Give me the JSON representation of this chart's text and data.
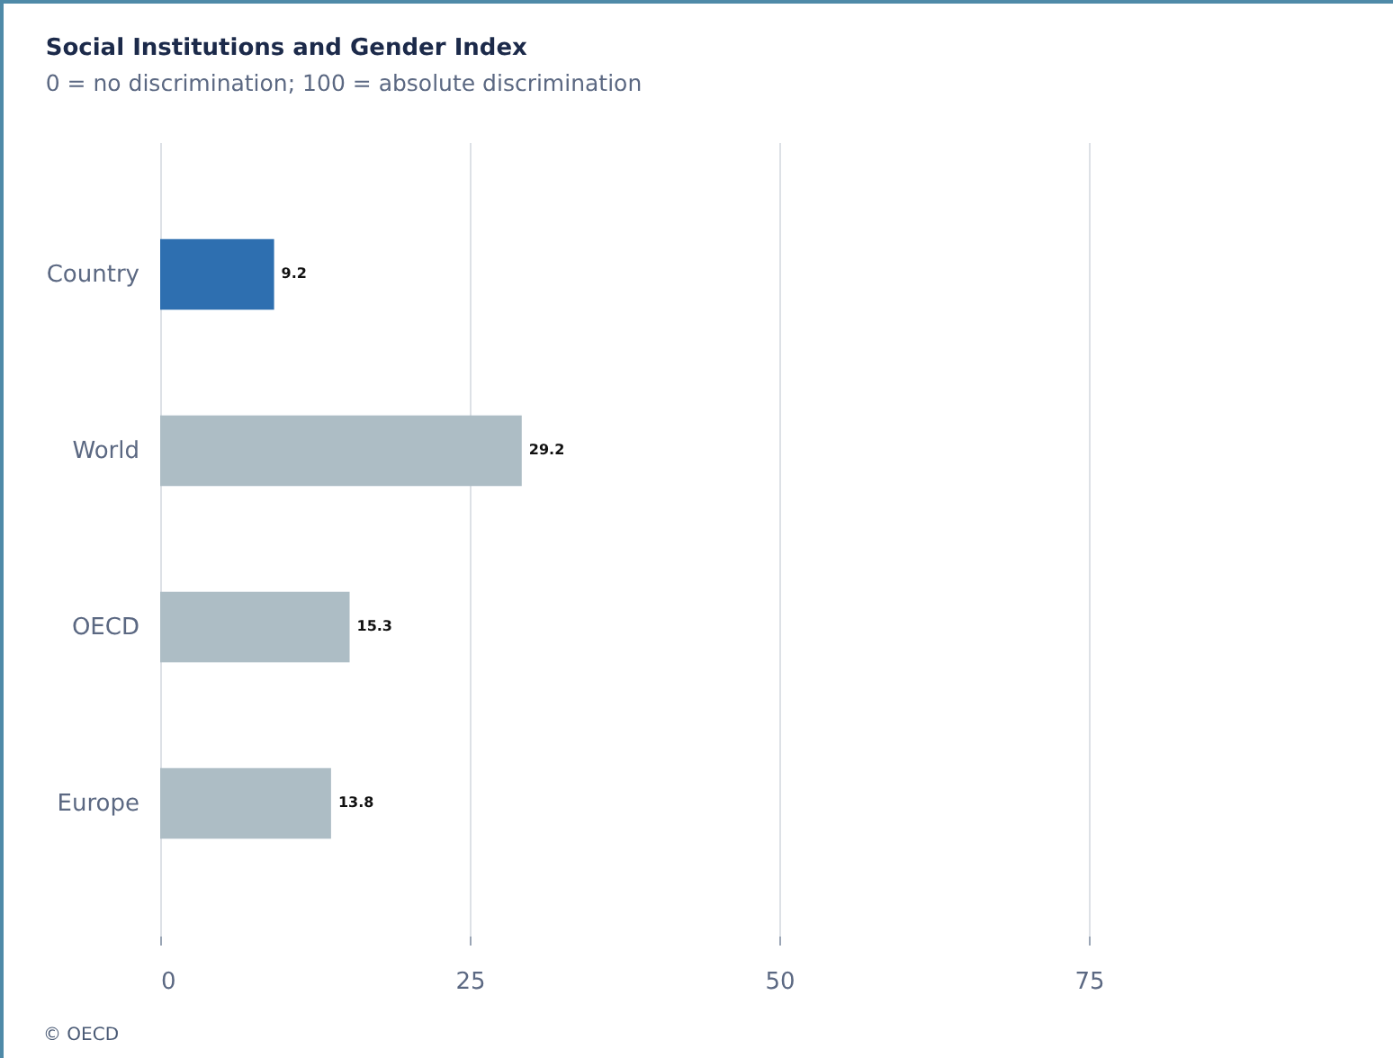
{
  "chart_data": {
    "type": "bar",
    "orientation": "horizontal",
    "title": "Social Institutions and Gender Index",
    "subtitle": "0 = no discrimination; 100 = absolute discrimination",
    "categories": [
      "Country",
      "World",
      "OECD",
      "Europe"
    ],
    "values": [
      9.2,
      29.2,
      15.3,
      13.8
    ],
    "colors": [
      "#2e6fb0",
      "#adbdc5",
      "#adbdc5",
      "#adbdc5"
    ],
    "xlim": [
      0,
      100
    ],
    "xticks": [
      0,
      25,
      50,
      75,
      {
        "value": 100,
        "label": null
      }
    ],
    "grid": "x",
    "data_labels": true,
    "annotations": [
      "© OECD"
    ]
  }
}
